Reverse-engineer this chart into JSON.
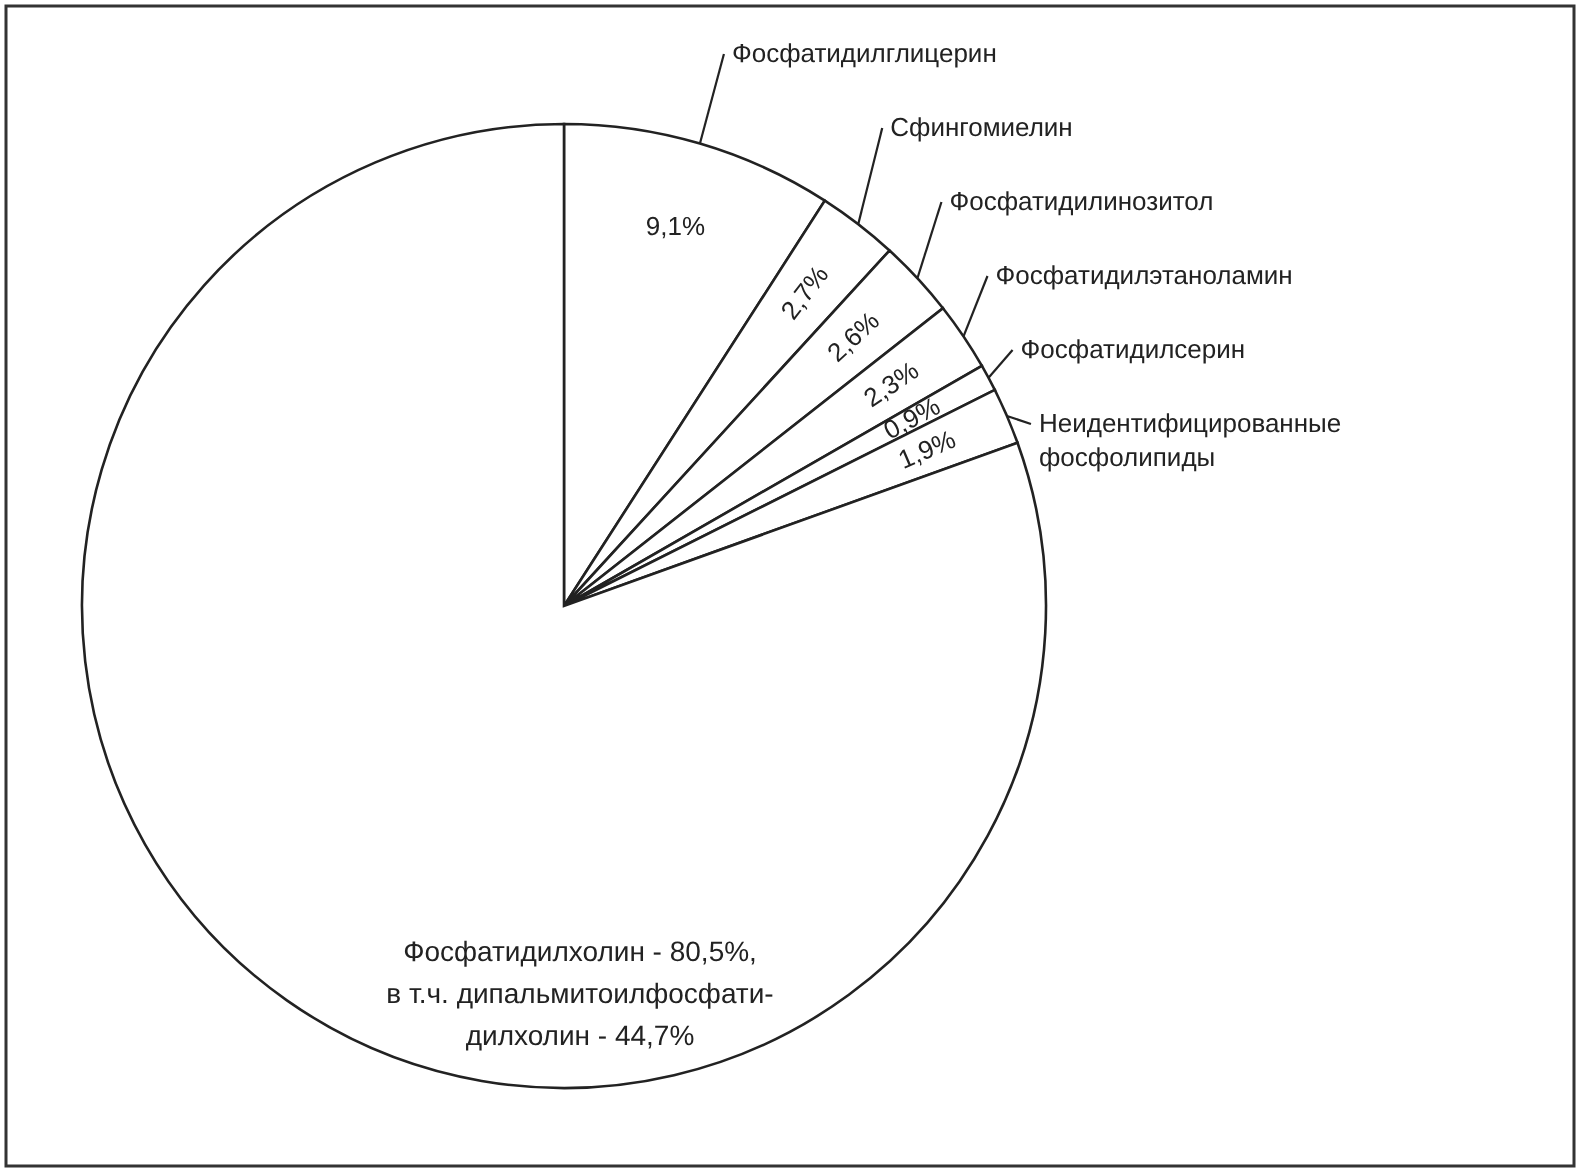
{
  "chart_data": {
    "type": "pie",
    "categories": [
      "Фосфатидилглицерин",
      "Сфингомиелин",
      "Фосфатидилинозитол",
      "Фосфатидилэтаноламин",
      "Фосфатидилсерин",
      "Неидентифицированные фосфолипиды",
      null
    ],
    "values": [
      9.1,
      2.7,
      2.6,
      2.3,
      0.9,
      1.9,
      80.5
    ],
    "colors": [
      "#ffffff",
      "#ffffff",
      "#ffffff",
      "#ffffff",
      "#ffffff",
      "#ffffff",
      "#ffffff"
    ],
    "value_labels": [
      "9,1%",
      "2,7%",
      "2,6%",
      "2,3%",
      "0,9%",
      "1,9%",
      null
    ],
    "annotations": [
      "Фосфатидилхолин - 80,5%,\nв т.ч. дипальмитоилфосфати-\nдилхолин - 44,7%"
    ]
  }
}
